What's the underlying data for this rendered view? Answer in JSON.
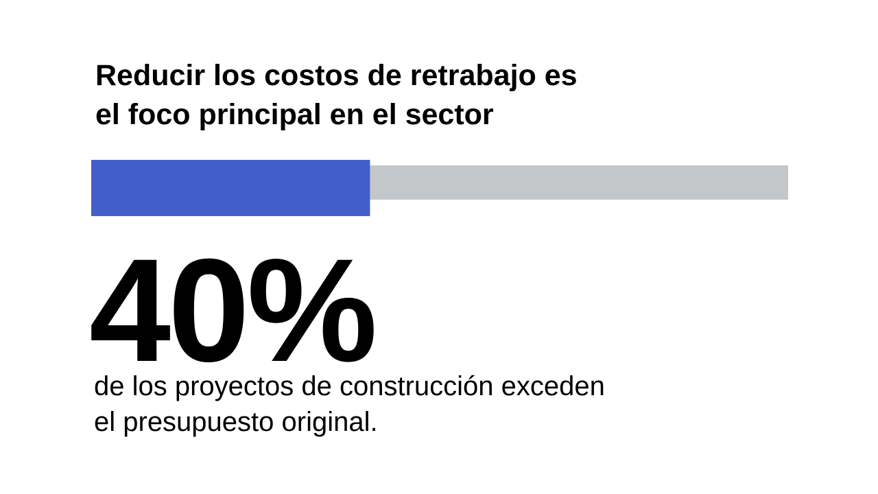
{
  "chart_data": {
    "type": "progress",
    "title": [
      "Reducir los costos de retrabajo es",
      "el foco principal en el sector"
    ],
    "values": [
      40
    ],
    "value_labels": [
      "40%"
    ],
    "subtitle": [
      "de los proyectos de construcción exceden",
      "el presupuesto original."
    ],
    "xlim": [
      0,
      100
    ],
    "color": "#435ecb",
    "track_color": "#c4c7ca"
  }
}
